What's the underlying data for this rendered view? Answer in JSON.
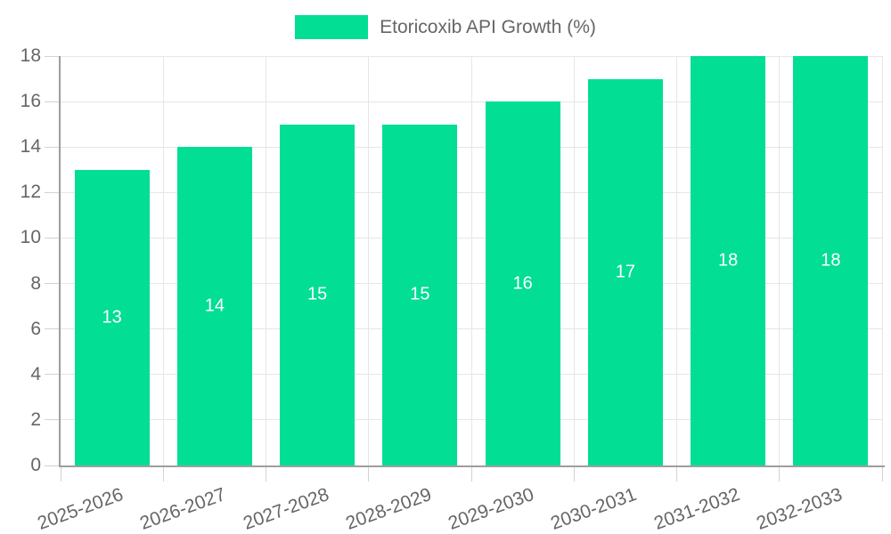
{
  "chart_data": {
    "type": "bar",
    "title": "",
    "categories": [
      "2025-2026",
      "2026-2027",
      "2027-2028",
      "2028-2029",
      "2029-2030",
      "2030-2031",
      "2031-2032",
      "2032-2033"
    ],
    "series": [
      {
        "name": "Etoricoxib API Growth (%)",
        "values": [
          13,
          14,
          15,
          15,
          16,
          17,
          18,
          18
        ]
      }
    ],
    "value_labels": [
      "13",
      "14",
      "15",
      "15",
      "16",
      "17",
      "18",
      "18"
    ],
    "xlabel": "",
    "ylabel": "",
    "ylim": [
      0,
      18
    ],
    "ytick_step": 2,
    "yticks": [
      0,
      2,
      4,
      6,
      8,
      10,
      12,
      14,
      16,
      18
    ],
    "grid": true,
    "legend_position": "top-center",
    "x_label_rotation_deg": -20
  },
  "colors": {
    "bar": "#02DE94",
    "grid": "#e6e6e6",
    "tick": "#d2d2d2",
    "axis": "#9e9e9e",
    "tick_label": "#666666",
    "legend_text": "#666666",
    "value_label": "#ffffff",
    "background": "#ffffff"
  }
}
